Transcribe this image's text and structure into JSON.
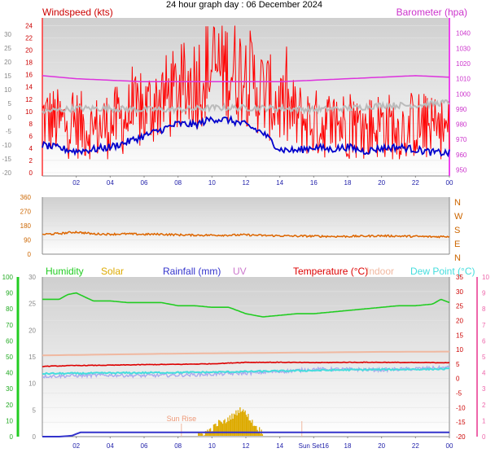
{
  "title": "24 hour graph day : 06 December 2024",
  "colors": {
    "wind": "#ff0000",
    "wind_speed_line": "#0000cc",
    "gust": "#bbbbbb",
    "barometer": "#dd33dd",
    "direction": "#dd6600",
    "humidity": "#22cc22",
    "solar": "#ddaa00",
    "rainfall": "#3333cc",
    "uv": "#cc77cc",
    "temperature": "#dd0000",
    "indoor": "#f0b8a0",
    "dew_point": "#44dddd",
    "dew_purple": "#aaaaee",
    "panel_top": "#d0d0d0",
    "panel_bottom": "#ffffff"
  },
  "chart_data": [
    {
      "type": "line",
      "x_ticks": [
        "02",
        "04",
        "06",
        "08",
        "10",
        "12",
        "14",
        "16",
        "18",
        "20",
        "22",
        "00"
      ],
      "ylabel_left": "Windspeed (kts)",
      "ylabel_right": "Barometer (hpa)",
      "left_ticks_outer": [
        "30",
        "25",
        "20",
        "15",
        "10",
        "5",
        "0",
        "-5",
        "-10",
        "-15",
        "-20"
      ],
      "left_ticks_inner": [
        "24",
        "22",
        "20",
        "18",
        "16",
        "14",
        "12",
        "10",
        "8",
        "6",
        "4",
        "2",
        "0"
      ],
      "right_ticks": [
        "1040",
        "1030",
        "1020",
        "1010",
        "1000",
        "990",
        "980",
        "970",
        "960",
        "950"
      ],
      "ylim_inner": [
        0,
        25
      ],
      "ylim_right": [
        946,
        1050
      ],
      "series": [
        {
          "name": "Windspeed (kts)",
          "role": "gust",
          "x": [
            0,
            1,
            2,
            3,
            4,
            5,
            6,
            7,
            8,
            9,
            10,
            11,
            12,
            13,
            14,
            15,
            16,
            17,
            18,
            19,
            20,
            21,
            22,
            23,
            24
          ],
          "values": [
            9,
            8,
            8,
            7,
            8,
            9,
            10,
            12,
            13,
            15,
            17,
            17,
            16,
            13,
            11,
            9,
            8,
            8,
            8,
            7,
            8,
            7,
            8,
            7,
            7
          ]
        },
        {
          "name": "",
          "role": "average",
          "x": [
            0,
            1,
            2,
            3,
            4,
            5,
            6,
            7,
            8,
            9,
            10,
            11,
            12,
            13,
            14,
            15,
            16,
            17,
            18,
            19,
            20,
            21,
            22,
            23,
            24
          ],
          "values": [
            4.5,
            4,
            3.5,
            3.8,
            4.2,
            5,
            6,
            7,
            8,
            7.8,
            8.8,
            8.6,
            7.8,
            6.5,
            3.8,
            3.6,
            4.2,
            3.8,
            4.2,
            3.5,
            4,
            4.2,
            3.8,
            3.3,
            3.2
          ]
        },
        {
          "name": "",
          "role": "gust-grey",
          "x": [
            0,
            2,
            4,
            6,
            8,
            10,
            12,
            14,
            16,
            18,
            20,
            22,
            24
          ],
          "values": [
            10,
            10.5,
            10.5,
            10.3,
            10.3,
            10.6,
            10.6,
            10.5,
            10.3,
            10.5,
            11,
            11,
            11.5
          ]
        },
        {
          "name": "Barometer (hpa)",
          "role": "pressure",
          "x": [
            0,
            2,
            4,
            6,
            8,
            10,
            12,
            14,
            16,
            18,
            20,
            22,
            24
          ],
          "values": [
            1012,
            1010,
            1009,
            1008,
            1008,
            1008,
            1008,
            1008,
            1009,
            1010,
            1011,
            1012,
            1011
          ]
        }
      ]
    },
    {
      "type": "line",
      "x_ticks": [],
      "left_ticks": [
        "360",
        "270",
        "180",
        "90",
        "0"
      ],
      "right_labels": [
        "N",
        "W",
        "S",
        "E",
        "N"
      ],
      "ylim": [
        0,
        360
      ],
      "series": [
        {
          "name": "",
          "x": [
            0,
            1,
            2,
            3,
            4,
            5,
            6,
            7,
            8,
            9,
            10,
            11,
            12,
            13,
            14,
            15,
            16,
            17,
            18,
            19,
            20,
            21,
            22,
            23,
            24
          ],
          "values": [
            125,
            130,
            140,
            128,
            126,
            128,
            125,
            126,
            122,
            120,
            120,
            120,
            122,
            118,
            116,
            114,
            114,
            112,
            112,
            114,
            116,
            114,
            112,
            110,
            112
          ]
        }
      ]
    },
    {
      "type": "line",
      "x_ticks": [
        "02",
        "04",
        "06",
        "08",
        "10",
        "12",
        "14",
        "Sun Set16",
        "18",
        "20",
        "22",
        "00"
      ],
      "legend": [
        "Humidity",
        "Solar",
        "Rainfall (mm)",
        "UV",
        "Temperature (°C)",
        "Indoor",
        "Dew Point (°C)"
      ],
      "annotations": [
        "Sun Rise"
      ],
      "left_ticks_outer": [
        "100",
        "90",
        "80",
        "70",
        "60",
        "50",
        "40",
        "30",
        "20",
        "10",
        "0"
      ],
      "left_ticks_inner": [
        "30",
        "25",
        "20",
        "15",
        "10",
        "5",
        "0"
      ],
      "right_ticks_inner": [
        "35",
        "30",
        "25",
        "20",
        "15",
        "10",
        "5",
        "0",
        "-5",
        "-10",
        "-15",
        "-20"
      ],
      "right_ticks_outer": [
        "10",
        "9",
        "8",
        "7",
        "6",
        "5",
        "4",
        "3",
        "2",
        "1",
        "0"
      ],
      "ylim_humidity": [
        0,
        100
      ],
      "ylim_temperature": [
        -20,
        35
      ],
      "series": [
        {
          "name": "Humidity",
          "x": [
            0,
            1,
            1.5,
            2,
            3,
            4,
            5,
            6,
            7,
            8,
            9,
            10,
            11,
            12,
            13,
            14,
            15,
            16,
            17,
            18,
            19,
            20,
            21,
            22,
            23,
            23.5,
            24
          ],
          "values": [
            86,
            86,
            89,
            90,
            85,
            85,
            84,
            84,
            84,
            82,
            82,
            81,
            81,
            77,
            75,
            76,
            77,
            77,
            78,
            79,
            80,
            81,
            82,
            82,
            83,
            86,
            84
          ]
        },
        {
          "name": "Temperature (°C)",
          "x": [
            0,
            2,
            4,
            6,
            8,
            10,
            12,
            14,
            16,
            18,
            20,
            22,
            24
          ],
          "values": [
            4.2,
            4.5,
            4.6,
            4.8,
            4.9,
            5.1,
            5.6,
            5.6,
            5.5,
            5.6,
            5.6,
            5.5,
            5.5
          ]
        },
        {
          "name": "Indoor",
          "x": [
            0,
            4,
            8,
            12,
            16,
            20,
            24
          ],
          "values": [
            8,
            8.3,
            8.6,
            8.8,
            9,
            9.2,
            9.3
          ]
        },
        {
          "name": "Dew Point (°C)",
          "x": [
            0,
            2,
            4,
            6,
            8,
            10,
            12,
            14,
            16,
            18,
            20,
            22,
            24
          ],
          "values": [
            1.7,
            1.8,
            1.9,
            2.0,
            2.1,
            2.2,
            2.4,
            2.6,
            2.8,
            3.0,
            3.1,
            3.2,
            3.3
          ]
        },
        {
          "name": "",
          "role": "dew-purple",
          "x": [
            0,
            2,
            4,
            6,
            8,
            10,
            12,
            14,
            16,
            18,
            20,
            22,
            24
          ],
          "values": [
            0.8,
            1.0,
            1.2,
            1.0,
            1.2,
            1.5,
            1.9,
            2.4,
            3.2,
            3.2,
            3.0,
            3.4,
            3.8
          ]
        },
        {
          "name": "Solar",
          "x": [
            9.2,
            9.6,
            10,
            10.4,
            10.8,
            11,
            11.3,
            11.6,
            11.8,
            12,
            12.2,
            12.4,
            12.6,
            12.8,
            13
          ],
          "values": [
            0.3,
            0.8,
            1.5,
            2.6,
            2.8,
            3.5,
            4.0,
            5.0,
            5.3,
            4.2,
            3.6,
            2.6,
            1.9,
            1.3,
            0.6
          ]
        },
        {
          "name": "Rainfall (mm)",
          "x": [
            0,
            1,
            1.8,
            2.2,
            24
          ],
          "values": [
            0,
            0,
            0.2,
            0.8,
            0.8
          ]
        }
      ]
    }
  ]
}
